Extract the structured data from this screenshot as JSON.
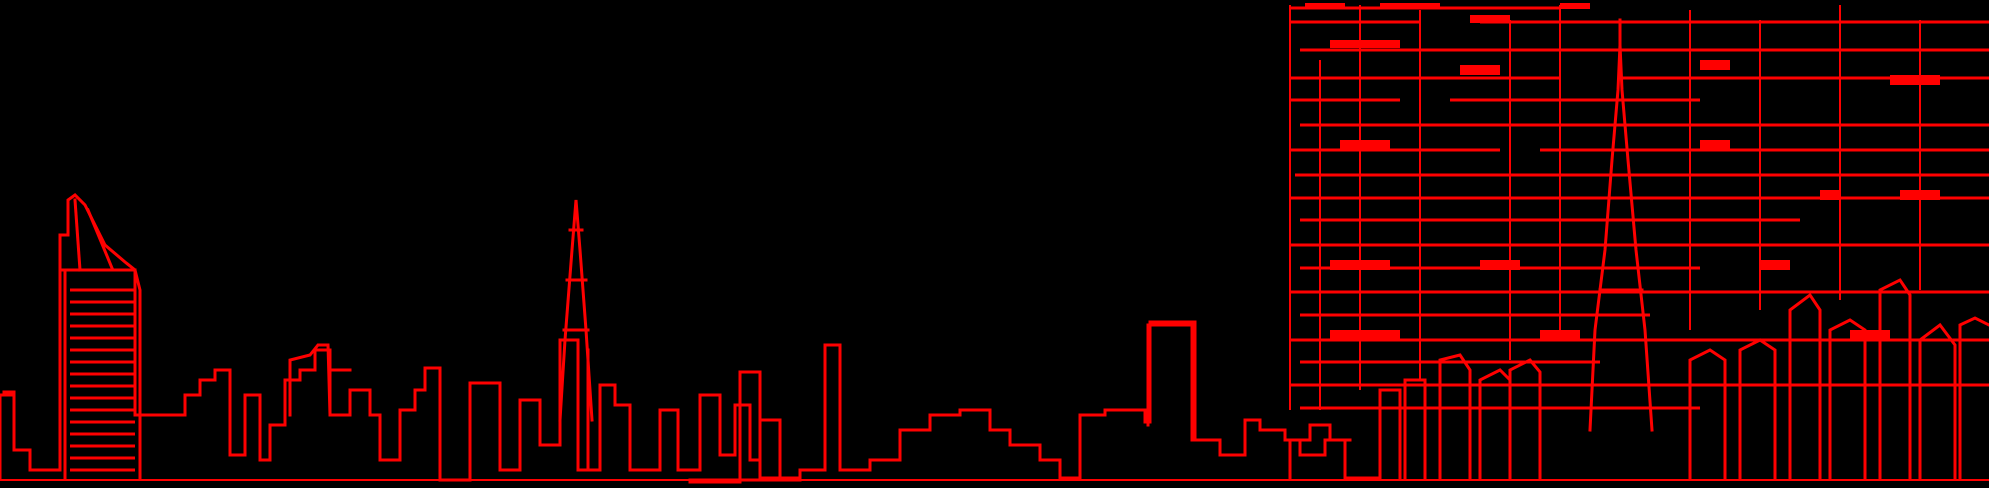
{
  "colors": {
    "background": "#000000",
    "line": "#ff0000"
  },
  "elements": {
    "skyline": "city-skyline-outline",
    "hotel": "sail-shaped-hotel-icon",
    "spire_left": "spire-tower-icon",
    "tallest_tower": "tallest-tower-icon",
    "noise": "line-art-noise-pattern"
  }
}
